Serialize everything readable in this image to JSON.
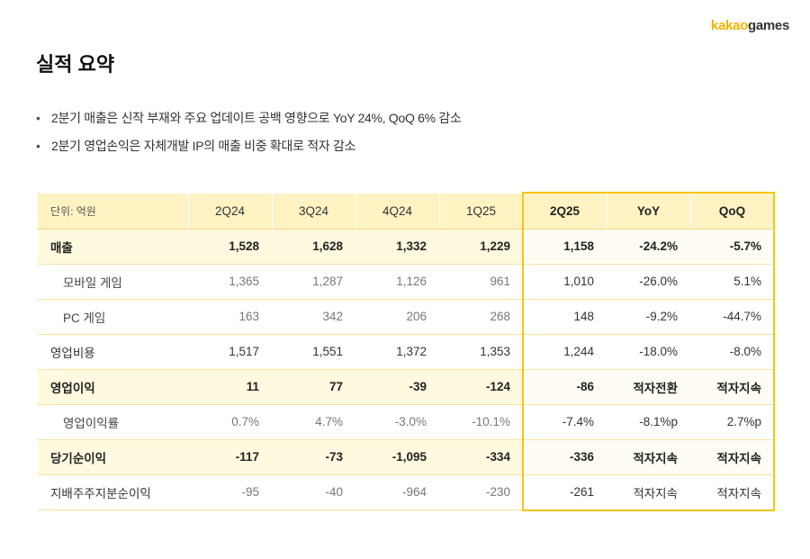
{
  "brand": {
    "logo_prefix": "kakao",
    "logo_suffix": "games"
  },
  "page_title": "실적 요약",
  "bullets": [
    "2분기 매출은 신작 부재와 주요 업데이트 공백 영향으로 YoY 24%, QoQ 6% 감소",
    "2분기 영업손익은 자체개발 IP의 매출 비중 확대로 적자 감소"
  ],
  "table": {
    "unit_label": "단위: 억원",
    "columns": [
      "2Q24",
      "3Q24",
      "4Q24",
      "1Q25",
      "2Q25",
      "YoY",
      "QoQ"
    ],
    "rows": [
      {
        "label": "매출",
        "values": [
          "1,528",
          "1,628",
          "1,332",
          "1,229",
          "1,158",
          "-24.2%",
          "-5.7%"
        ]
      },
      {
        "label": "모바일 게임",
        "values": [
          "1,365",
          "1,287",
          "1,126",
          "961",
          "1,010",
          "-26.0%",
          "5.1%"
        ]
      },
      {
        "label": "PC 게임",
        "values": [
          "163",
          "342",
          "206",
          "268",
          "148",
          "-9.2%",
          "-44.7%"
        ]
      },
      {
        "label": "영업비용",
        "values": [
          "1,517",
          "1,551",
          "1,372",
          "1,353",
          "1,244",
          "-18.0%",
          "-8.0%"
        ]
      },
      {
        "label": "영업이익",
        "values": [
          "11",
          "77",
          "-39",
          "-124",
          "-86",
          "적자전환",
          "적자지속"
        ]
      },
      {
        "label": "영업이익률",
        "values": [
          "0.7%",
          "4.7%",
          "-3.0%",
          "-10.1%",
          "-7.4%",
          "-8.1%p",
          "2.7%p"
        ]
      },
      {
        "label": "당기순이익",
        "values": [
          "-117",
          "-73",
          "-1,095",
          "-334",
          "-336",
          "적자지속",
          "적자지속"
        ]
      },
      {
        "label": "지배주주지분순이익",
        "values": [
          "-95",
          "-40",
          "-964",
          "-230",
          "-261",
          "적자지속",
          "적자지속"
        ]
      }
    ]
  },
  "colors": {
    "accent": "#f5c518",
    "header_bg": "#fff3c4",
    "row_shade": "#fff9df"
  }
}
